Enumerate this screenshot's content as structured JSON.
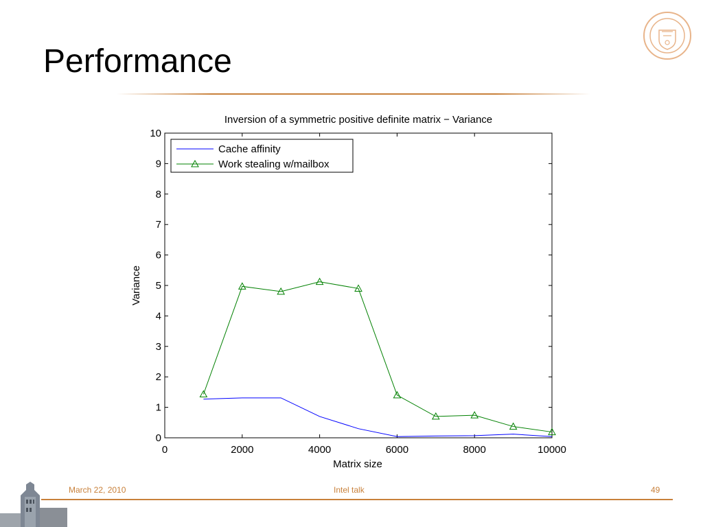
{
  "slide": {
    "title": "Performance",
    "footer": {
      "date": "March 22, 2010",
      "center": "Intel talk",
      "page": "49"
    },
    "accent_color": "#c8803a"
  },
  "chart_data": {
    "type": "line",
    "title": "Inversion of a symmetric positive definite matrix − Variance",
    "xlabel": "Matrix size",
    "ylabel": "Variance",
    "xlim": [
      0,
      10000
    ],
    "ylim": [
      0,
      10
    ],
    "xticks": [
      0,
      2000,
      4000,
      6000,
      8000,
      10000
    ],
    "yticks": [
      0,
      1,
      2,
      3,
      4,
      5,
      6,
      7,
      8,
      9,
      10
    ],
    "legend_position": "top-left",
    "grid": false,
    "series": [
      {
        "name": "Cache affinity",
        "color": "#0000ff",
        "marker": "none",
        "x": [
          1000,
          2000,
          3000,
          4000,
          5000,
          6000,
          7000,
          8000,
          9000,
          10000
        ],
        "y": [
          1.27,
          1.31,
          1.31,
          0.7,
          0.3,
          0.04,
          0.06,
          0.07,
          0.12,
          0.04
        ]
      },
      {
        "name": "Work stealing w/mailbox",
        "color": "#008000",
        "marker": "triangle",
        "x": [
          1000,
          2000,
          3000,
          4000,
          5000,
          6000,
          7000,
          8000,
          9000,
          10000
        ],
        "y": [
          1.43,
          4.97,
          4.8,
          5.12,
          4.9,
          1.4,
          0.7,
          0.74,
          0.37,
          0.19
        ]
      }
    ]
  }
}
